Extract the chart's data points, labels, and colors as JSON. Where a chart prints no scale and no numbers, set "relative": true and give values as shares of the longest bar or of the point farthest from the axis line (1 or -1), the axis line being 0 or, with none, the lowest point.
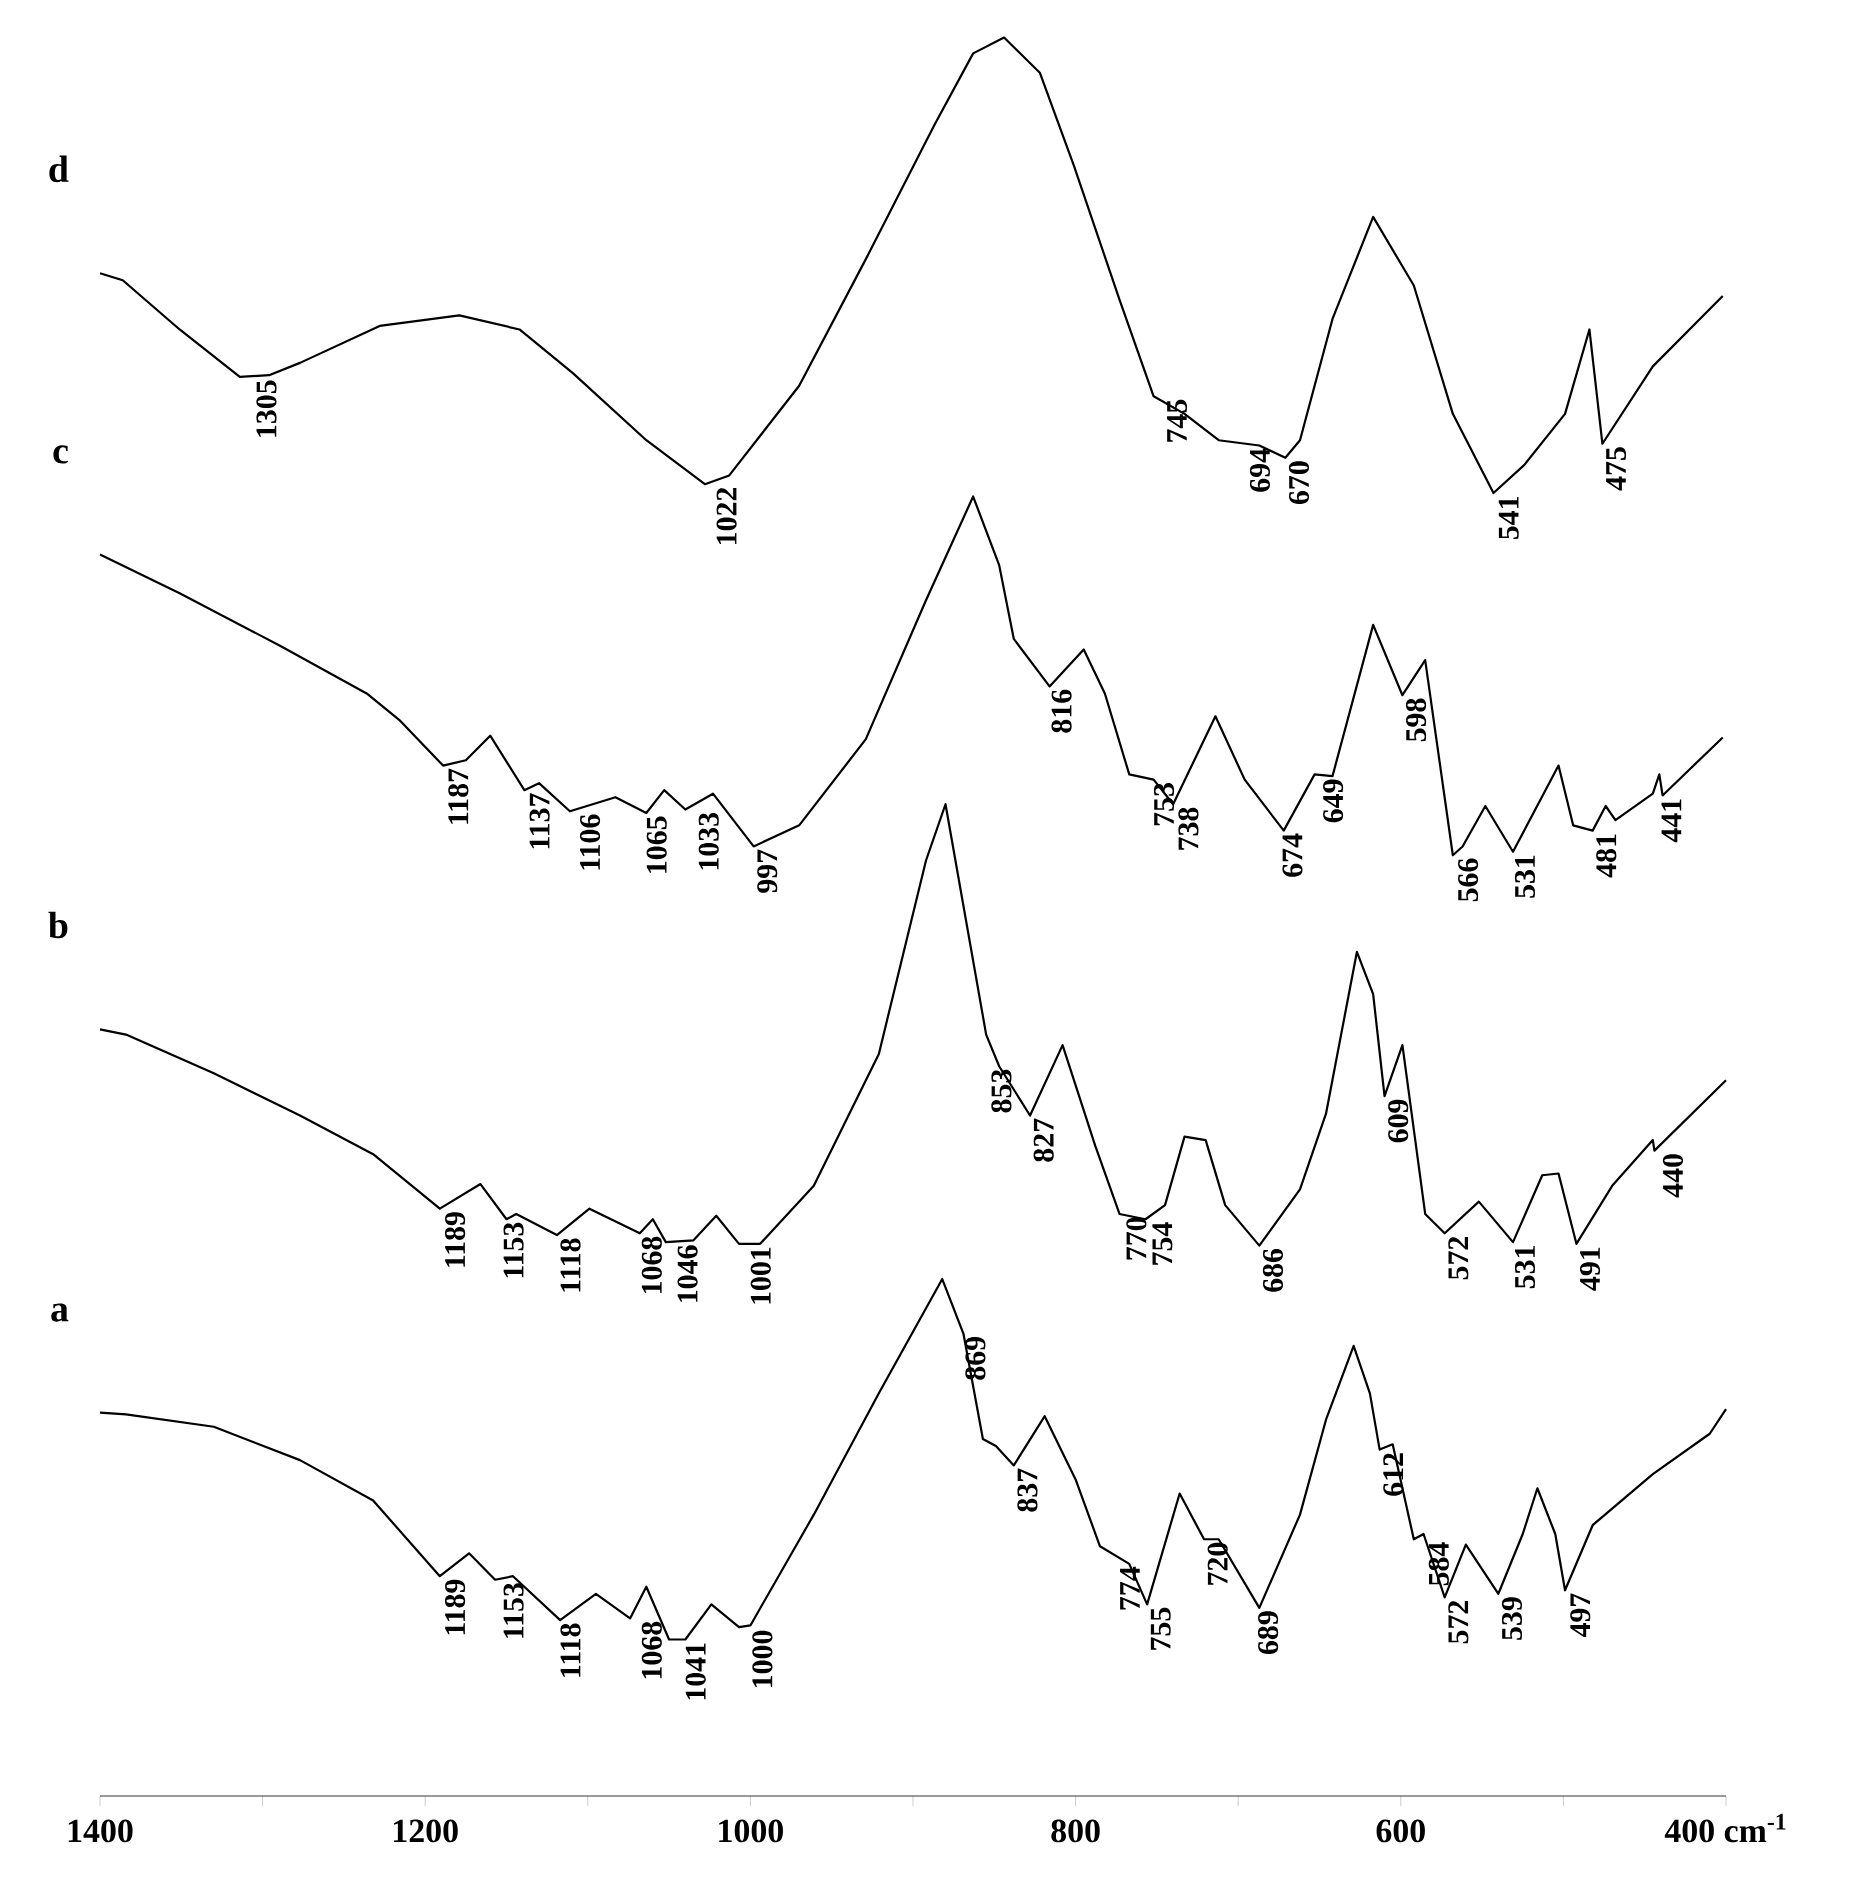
{
  "chart_data": {
    "type": "line",
    "relative": true,
    "xlim": [
      1400,
      400
    ],
    "xticks": [
      1400,
      {
        "value": 1300,
        "label": null
      },
      1200,
      {
        "value": 1100,
        "label": null
      },
      1000,
      {
        "value": 900,
        "label": null
      },
      800,
      {
        "value": 700,
        "label": null
      },
      600,
      {
        "value": 500,
        "label": null
      },
      {
        "value": 400,
        "label": "400 cm$^{-1}$"
      }
    ],
    "series": [
      {
        "name": "a",
        "color": "#000000",
        "x": [
          1400,
          1384,
          1330,
          1277,
          1232,
          1191,
          1173,
          1157,
          1146,
          1117,
          1095,
          1074,
          1064,
          1050,
          1040,
          1024,
          1007,
          1000,
          961,
          921,
          882,
          869,
          857,
          849,
          838,
          819,
          800,
          785,
          767,
          756,
          736,
          721,
          712,
          687,
          662,
          646,
          629,
          619,
          613,
          605,
          592,
          586,
          573,
          560,
          540,
          525,
          516,
          505,
          499,
          482,
          445,
          410,
          400
        ],
        "values": [
          0.218,
          0.217,
          0.21,
          0.191,
          0.168,
          0.125,
          0.138,
          0.123,
          0.125,
          0.1,
          0.115,
          0.101,
          0.119,
          0.089,
          0.089,
          0.109,
          0.096,
          0.097,
          0.16,
          0.229,
          0.294,
          0.263,
          0.203,
          0.199,
          0.188,
          0.216,
          0.18,
          0.142,
          0.132,
          0.109,
          0.172,
          0.146,
          0.146,
          0.107,
          0.16,
          0.214,
          0.256,
          0.229,
          0.197,
          0.2,
          0.146,
          0.149,
          0.113,
          0.143,
          0.115,
          0.149,
          0.175,
          0.149,
          0.117,
          0.154,
          0.183,
          0.206,
          0.22
        ]
      },
      {
        "name": "b",
        "color": "#000000",
        "x": [
          1400,
          1384,
          1330,
          1277,
          1232,
          1191,
          1166,
          1150,
          1144,
          1119,
          1099,
          1068,
          1060,
          1052,
          1035,
          1021,
          1007,
          994,
          961,
          921,
          892,
          880,
          855,
          847,
          828,
          808,
          788,
          773,
          757,
          745,
          733,
          720,
          708,
          687,
          662,
          646,
          627,
          617,
          610,
          599,
          585,
          573,
          552,
          531,
          513,
          503,
          492,
          470,
          445,
          444,
          400
        ],
        "values": [
          0.436,
          0.433,
          0.411,
          0.387,
          0.365,
          0.334,
          0.348,
          0.328,
          0.331,
          0.319,
          0.334,
          0.32,
          0.328,
          0.315,
          0.316,
          0.33,
          0.314,
          0.314,
          0.347,
          0.422,
          0.532,
          0.564,
          0.433,
          0.415,
          0.387,
          0.427,
          0.37,
          0.331,
          0.328,
          0.336,
          0.375,
          0.373,
          0.336,
          0.313,
          0.345,
          0.388,
          0.48,
          0.456,
          0.398,
          0.427,
          0.331,
          0.32,
          0.338,
          0.315,
          0.353,
          0.354,
          0.314,
          0.347,
          0.373,
          0.367,
          0.407
        ]
      },
      {
        "name": "c",
        "color": "#000000",
        "x": [
          1400,
          1351,
          1289,
          1236,
          1216,
          1189,
          1175,
          1160,
          1139,
          1130,
          1111,
          1083,
          1064,
          1053,
          1040,
          1023,
          998,
          970,
          929,
          892,
          863,
          847,
          838,
          816,
          795,
          782,
          767,
          752,
          740,
          714,
          696,
          672,
          653,
          642,
          617,
          599,
          585,
          568,
          562,
          548,
          531,
          503,
          494,
          482,
          474,
          468,
          445,
          441,
          439,
          402
        ],
        "values": [
          0.706,
          0.684,
          0.654,
          0.627,
          0.612,
          0.586,
          0.589,
          0.603,
          0.572,
          0.576,
          0.56,
          0.568,
          0.559,
          0.572,
          0.561,
          0.57,
          0.54,
          0.552,
          0.601,
          0.68,
          0.739,
          0.7,
          0.658,
          0.631,
          0.652,
          0.627,
          0.581,
          0.578,
          0.564,
          0.614,
          0.578,
          0.549,
          0.581,
          0.58,
          0.666,
          0.626,
          0.646,
          0.535,
          0.54,
          0.563,
          0.537,
          0.586,
          0.552,
          0.549,
          0.563,
          0.555,
          0.57,
          0.581,
          0.569,
          0.602
        ]
      },
      {
        "name": "d",
        "color": "#000000",
        "x": [
          1400,
          1386,
          1351,
          1314,
          1296,
          1277,
          1228,
          1179,
          1142,
          1109,
          1064,
          1028,
          1013,
          970,
          929,
          887,
          863,
          844,
          822,
          801,
          773,
          752,
          733,
          712,
          687,
          671,
          662,
          642,
          617,
          592,
          568,
          543,
          524,
          499,
          484,
          476,
          445,
          402
        ],
        "values": [
          0.866,
          0.862,
          0.834,
          0.807,
          0.808,
          0.815,
          0.836,
          0.842,
          0.834,
          0.809,
          0.771,
          0.746,
          0.751,
          0.802,
          0.874,
          0.95,
          0.991,
          1.0,
          0.98,
          0.927,
          0.851,
          0.796,
          0.786,
          0.771,
          0.768,
          0.761,
          0.771,
          0.84,
          0.898,
          0.859,
          0.786,
          0.741,
          0.757,
          0.786,
          0.834,
          0.769,
          0.813,
          0.853
        ]
      }
    ],
    "annotations": [
      {
        "text": "1305",
        "x": 1305,
        "y": 0.807
      },
      {
        "text": "1022",
        "x": 1022,
        "y": 0.746
      },
      {
        "text": "745",
        "x": 745,
        "y": 0.796
      },
      {
        "text": "694",
        "x": 694,
        "y": 0.768
      },
      {
        "text": "670",
        "x": 670,
        "y": 0.761
      },
      {
        "text": "541",
        "x": 541,
        "y": 0.741
      },
      {
        "text": "475",
        "x": 475,
        "y": 0.769
      },
      {
        "text": "1187",
        "x": 1187,
        "y": 0.586
      },
      {
        "text": "1137",
        "x": 1137,
        "y": 0.572
      },
      {
        "text": "1106",
        "x": 1106,
        "y": 0.56
      },
      {
        "text": "1065",
        "x": 1065,
        "y": 0.559
      },
      {
        "text": "1033",
        "x": 1033,
        "y": 0.561
      },
      {
        "text": "997",
        "x": 997,
        "y": 0.54
      },
      {
        "text": "816",
        "x": 816,
        "y": 0.631
      },
      {
        "text": "753",
        "x": 753,
        "y": 0.578
      },
      {
        "text": "738",
        "x": 738,
        "y": 0.564
      },
      {
        "text": "674",
        "x": 674,
        "y": 0.549
      },
      {
        "text": "649",
        "x": 649,
        "y": 0.581
      },
      {
        "text": "598",
        "x": 598,
        "y": 0.626
      },
      {
        "text": "566",
        "x": 566,
        "y": 0.535
      },
      {
        "text": "531",
        "x": 531,
        "y": 0.537
      },
      {
        "text": "481",
        "x": 481,
        "y": 0.549
      },
      {
        "text": "441",
        "x": 441,
        "y": 0.57
      },
      {
        "text": "1189",
        "x": 1189,
        "y": 0.334
      },
      {
        "text": "1153",
        "x": 1153,
        "y": 0.328
      },
      {
        "text": "1118",
        "x": 1118,
        "y": 0.319
      },
      {
        "text": "1068",
        "x": 1068,
        "y": 0.32
      },
      {
        "text": "1046",
        "x": 1046,
        "y": 0.315
      },
      {
        "text": "1001",
        "x": 1001,
        "y": 0.314
      },
      {
        "text": "853",
        "x": 853,
        "y": 0.433
      },
      {
        "text": "827",
        "x": 827,
        "y": 0.387
      },
      {
        "text": "770",
        "x": 770,
        "y": 0.331
      },
      {
        "text": "754",
        "x": 754,
        "y": 0.328
      },
      {
        "text": "686",
        "x": 686,
        "y": 0.313
      },
      {
        "text": "609",
        "x": 609,
        "y": 0.398
      },
      {
        "text": "572",
        "x": 572,
        "y": 0.32
      },
      {
        "text": "531",
        "x": 531,
        "y": 0.315
      },
      {
        "text": "491",
        "x": 491,
        "y": 0.314
      },
      {
        "text": "440",
        "x": 440,
        "y": 0.373
      },
      {
        "text": "1189",
        "x": 1189,
        "y": 0.125
      },
      {
        "text": "1153",
        "x": 1153,
        "y": 0.123
      },
      {
        "text": "1118",
        "x": 1118,
        "y": 0.1
      },
      {
        "text": "1068",
        "x": 1068,
        "y": 0.101
      },
      {
        "text": "1041",
        "x": 1041,
        "y": 0.089
      },
      {
        "text": "1000",
        "x": 1000,
        "y": 0.097
      },
      {
        "text": "869",
        "x": 869,
        "y": 0.263
      },
      {
        "text": "837",
        "x": 837,
        "y": 0.188
      },
      {
        "text": "774",
        "x": 774,
        "y": 0.132
      },
      {
        "text": "755",
        "x": 755,
        "y": 0.109
      },
      {
        "text": "720",
        "x": 720,
        "y": 0.146
      },
      {
        "text": "689",
        "x": 689,
        "y": 0.107
      },
      {
        "text": "612",
        "x": 612,
        "y": 0.197
      },
      {
        "text": "584",
        "x": 584,
        "y": 0.149
      },
      {
        "text": "572",
        "x": 572,
        "y": 0.113
      },
      {
        "text": "539",
        "x": 539,
        "y": 0.115
      },
      {
        "text": "497",
        "x": 497,
        "y": 0.117
      }
    ]
  }
}
